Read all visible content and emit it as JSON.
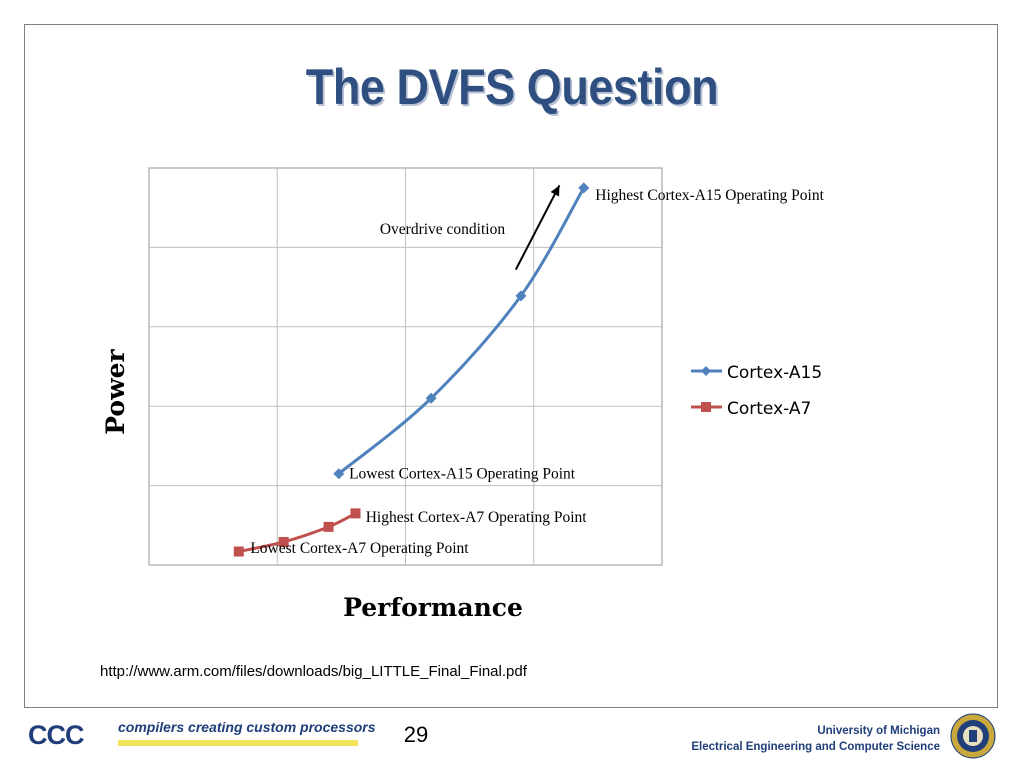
{
  "slide": {
    "title": "The DVFS Question",
    "source_link": "http://www.arm.com/files/downloads/big_LITTLE_Final_Final.pdf",
    "page_number": "29"
  },
  "footer": {
    "logo_text": "CCC",
    "tagline": "compilers creating custom processors",
    "university": "University of Michigan",
    "department": "Electrical Engineering and Computer Science"
  },
  "chart_data": {
    "type": "line",
    "xlabel": "Performance",
    "ylabel": "Power",
    "xlim": [
      0,
      4
    ],
    "ylim": [
      0,
      5
    ],
    "grid": true,
    "legend_position": "right",
    "series": [
      {
        "name": "Cortex-A15",
        "color": "#4f81bd",
        "marker": "diamond",
        "x": [
          1.48,
          2.2,
          2.9,
          3.39
        ],
        "y": [
          1.15,
          2.1,
          3.39,
          4.75
        ]
      },
      {
        "name": "Cortex-A7",
        "color": "#c0504d",
        "marker": "square",
        "x": [
          0.7,
          1.05,
          1.4,
          1.61
        ],
        "y": [
          0.17,
          0.29,
          0.48,
          0.65
        ]
      }
    ],
    "annotations": [
      {
        "text": "Overdrive condition",
        "x": 1.8,
        "y": 4.17
      },
      {
        "text": "Highest Cortex-A15 Operating Point",
        "x": 3.48,
        "y": 4.6
      },
      {
        "text": "Lowest Cortex-A15 Operating Point",
        "x": 1.56,
        "y": 1.09
      },
      {
        "text": "Highest Cortex-A7 Operating Point",
        "x": 1.69,
        "y": 0.54
      },
      {
        "text": "Lowest Cortex-A7 Operating Point",
        "x": 0.79,
        "y": 0.15
      }
    ],
    "arrow": {
      "from": [
        2.86,
        3.72
      ],
      "to": [
        3.2,
        4.78
      ]
    }
  }
}
